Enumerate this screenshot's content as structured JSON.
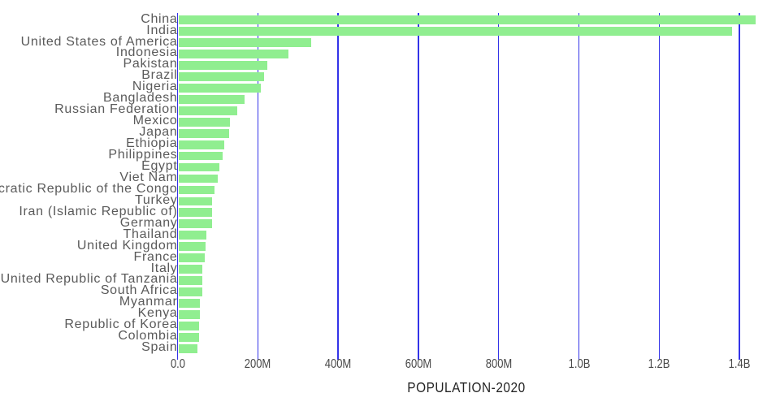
{
  "chart_data": {
    "type": "bar",
    "orientation": "horizontal",
    "title": "POPULATION-2020",
    "xlabel": "POPULATION-2020",
    "ylabel": "",
    "legend": "none",
    "grid": "vertical",
    "xlim_millions": [
      0,
      1450
    ],
    "x_tick_labels": [
      "0.0",
      "200M",
      "400M",
      "600M",
      "800M",
      "1.0B",
      "1.2B",
      "1.4B"
    ],
    "x_tick_values_millions": [
      0,
      200,
      400,
      600,
      800,
      1000,
      1200,
      1400
    ],
    "categories": [
      "China",
      "India",
      "United States of America",
      "Indonesia",
      "Pakistan",
      "Brazil",
      "Nigeria",
      "Bangladesh",
      "Russian Federation",
      "Mexico",
      "Japan",
      "Ethiopia",
      "Philippines",
      "Egypt",
      "Viet Nam",
      "Democratic Republic of the Congo",
      "Turkey",
      "Iran (Islamic Republic of)",
      "Germany",
      "Thailand",
      "United Kingdom",
      "France",
      "Italy",
      "United Republic of Tanzania",
      "South Africa",
      "Myanmar",
      "Kenya",
      "Republic of Korea",
      "Colombia",
      "Spain"
    ],
    "values_millions": [
      1439,
      1380,
      331,
      273.5,
      220.9,
      212.6,
      206.1,
      164.7,
      145.9,
      128.9,
      126.5,
      115.0,
      109.6,
      102.3,
      97.3,
      89.6,
      84.3,
      84.0,
      83.8,
      69.8,
      67.9,
      65.3,
      60.5,
      59.7,
      59.3,
      54.4,
      53.8,
      51.3,
      50.9,
      46.8
    ],
    "colors": {
      "bar": "#90ee90",
      "gridline": "#3434e8",
      "category_label": "#5a5a5a",
      "tick_label": "#484848",
      "title": "#242424",
      "background": "#ffffff"
    }
  }
}
